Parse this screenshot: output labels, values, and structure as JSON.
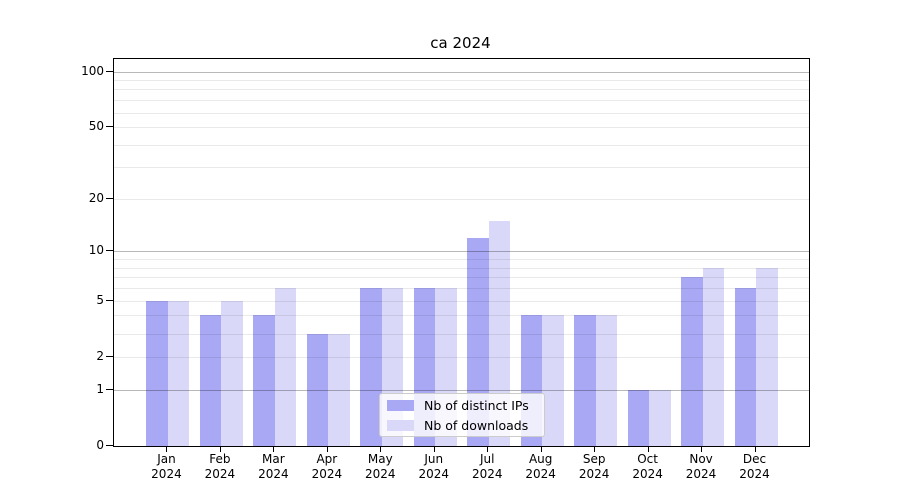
{
  "title": "ca 2024",
  "legend": {
    "items": [
      {
        "label": "Nb of distinct IPs",
        "color": "#a8a8f4"
      },
      {
        "label": "Nb of downloads",
        "color": "#d9d8f8"
      }
    ]
  },
  "colors": {
    "bar_distinct_ips": "#a8a8f4",
    "bar_downloads": "#d9d8f8",
    "axis": "#000000",
    "grid_major": "#b8b8b8",
    "grid_minor": "#e8e8e8",
    "legend_border": "#cccccc"
  },
  "chart_data": {
    "type": "bar",
    "title": "ca 2024",
    "categories": [
      "Jan 2024",
      "Feb 2024",
      "Mar 2024",
      "Apr 2024",
      "May 2024",
      "Jun 2024",
      "Jul 2024",
      "Aug 2024",
      "Sep 2024",
      "Oct 2024",
      "Nov 2024",
      "Dec 2024"
    ],
    "series": [
      {
        "name": "Nb of distinct IPs",
        "color": "#a8a8f4",
        "values": [
          5,
          4,
          4,
          3,
          6,
          6,
          12,
          4,
          4,
          1,
          7,
          6
        ]
      },
      {
        "name": "Nb of downloads",
        "color": "#d9d8f8",
        "values": [
          5,
          5,
          6,
          3,
          6,
          6,
          15,
          4,
          4,
          1,
          8,
          8
        ]
      }
    ],
    "xlabel": "",
    "ylabel": "",
    "yscale": "log1p",
    "ylim": [
      0,
      116
    ],
    "ytick_values": [
      0,
      1,
      2,
      5,
      10,
      20,
      50,
      100
    ],
    "major_gridline_values": [
      1,
      10,
      100
    ],
    "minor_gridline_values": [
      2,
      3,
      4,
      5,
      6,
      7,
      8,
      9,
      20,
      30,
      40,
      50,
      60,
      70,
      80,
      90
    ],
    "grid": true,
    "legend_position": "lower center"
  }
}
